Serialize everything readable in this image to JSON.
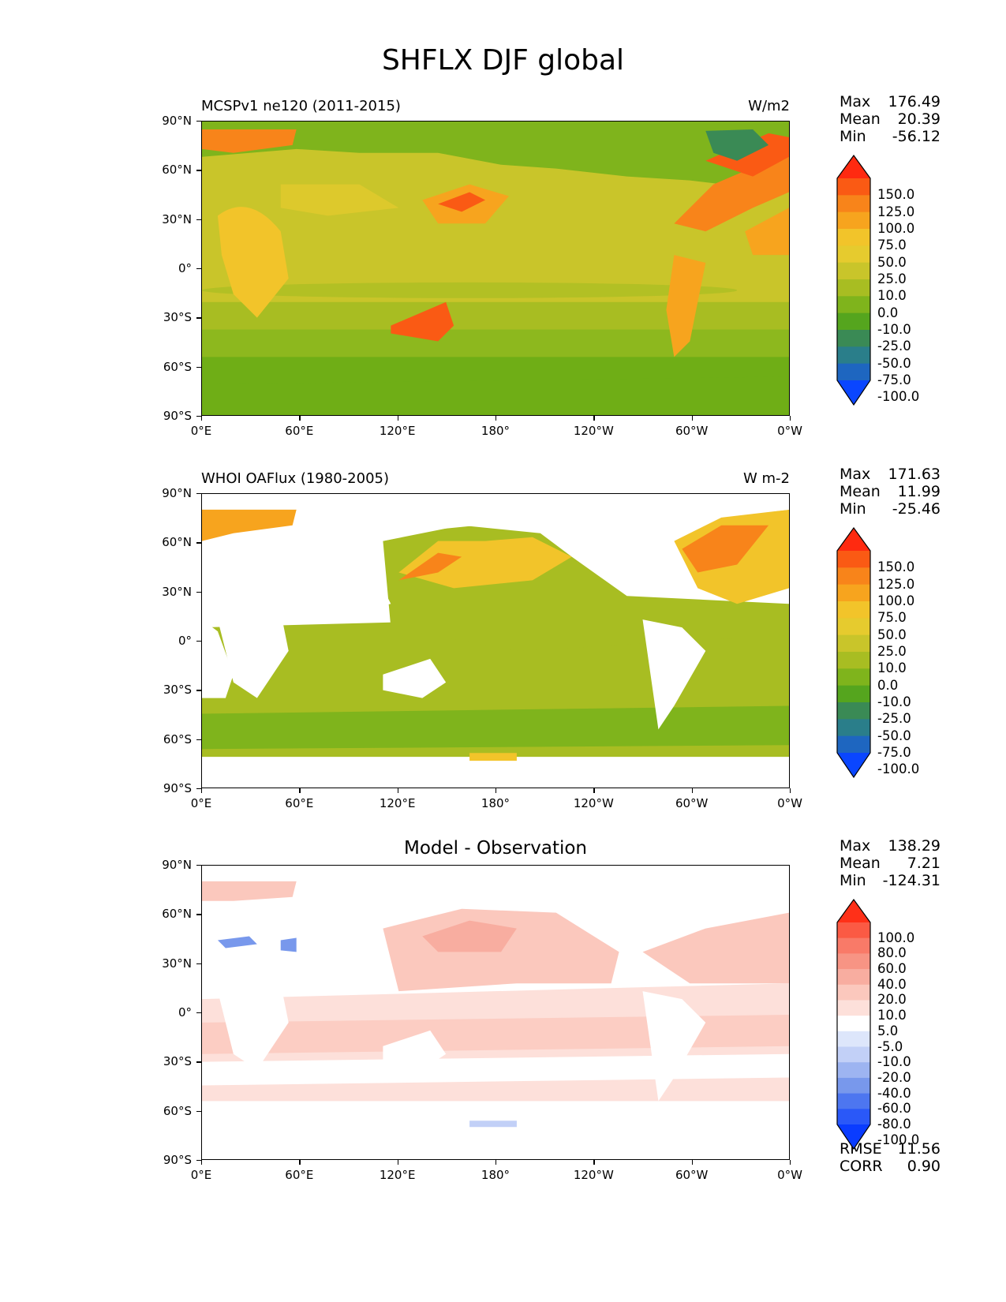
{
  "title": "SHFLX DJF global",
  "lat_ticks": [
    "90°N",
    "60°N",
    "30°N",
    "0°",
    "30°S",
    "60°S",
    "90°S"
  ],
  "lon_ticks": [
    "0°E",
    "60°E",
    "120°E",
    "180°",
    "120°W",
    "60°W",
    "0°W"
  ],
  "panels": [
    {
      "left_title": "MCSPv1 ne120 (2011-2015)",
      "right_title": "W/m2",
      "stats": [
        {
          "label": "Max",
          "value": "176.49"
        },
        {
          "label": "Mean",
          "value": "20.39"
        },
        {
          "label": "Min",
          "value": "-56.12"
        }
      ],
      "colorbar": {
        "labels": [
          "150.0",
          "125.0",
          "100.0",
          "75.0",
          "50.0",
          "25.0",
          "10.0",
          "0.0",
          "-10.0",
          "-25.0",
          "-50.0",
          "-75.0",
          "-100.0"
        ],
        "colors": [
          "#ff2a10",
          "#fa5a14",
          "#f8841a",
          "#f7a41e",
          "#f2c42a",
          "#e6cb2e",
          "#c9c52a",
          "#a8bd22",
          "#7fb41c",
          "#55a51e",
          "#3a8a55",
          "#2a7e8a",
          "#1e66c0",
          "#0a46ff"
        ]
      }
    },
    {
      "left_title": "WHOI OAFlux (1980-2005)",
      "right_title": "W m-2",
      "stats": [
        {
          "label": "Max",
          "value": "171.63"
        },
        {
          "label": "Mean",
          "value": "11.99"
        },
        {
          "label": "Min",
          "value": "-25.46"
        }
      ],
      "colorbar": {
        "labels": [
          "150.0",
          "125.0",
          "100.0",
          "75.0",
          "50.0",
          "25.0",
          "10.0",
          "0.0",
          "-10.0",
          "-25.0",
          "-50.0",
          "-75.0",
          "-100.0"
        ],
        "colors": [
          "#ff2a10",
          "#fa5a14",
          "#f8841a",
          "#f7a41e",
          "#f2c42a",
          "#e6cb2e",
          "#c9c52a",
          "#a8bd22",
          "#7fb41c",
          "#55a51e",
          "#3a8a55",
          "#2a7e8a",
          "#1e66c0",
          "#0a46ff"
        ]
      }
    },
    {
      "center_title": "Model - Observation",
      "stats": [
        {
          "label": "Max",
          "value": "138.29"
        },
        {
          "label": "Mean",
          "value": "7.21"
        },
        {
          "label": "Min",
          "value": "-124.31"
        }
      ],
      "extra_stats": [
        {
          "label": "RMSE",
          "value": "11.56"
        },
        {
          "label": "CORR",
          "value": "0.90"
        }
      ],
      "colorbar": {
        "labels": [
          "100.0",
          "80.0",
          "60.0",
          "40.0",
          "20.0",
          "10.0",
          "5.0",
          "-5.0",
          "-10.0",
          "-20.0",
          "-40.0",
          "-60.0",
          "-80.0",
          "-100.0"
        ],
        "colors": [
          "#ff3018",
          "#fb5a44",
          "#f97a68",
          "#f79484",
          "#f8ada0",
          "#fbc8bd",
          "#fde0da",
          "#ffffff",
          "#dde6fb",
          "#c2d0f7",
          "#9db4f1",
          "#7898ec",
          "#4d76f0",
          "#2a58f8",
          "#0a3cff"
        ]
      }
    }
  ]
}
